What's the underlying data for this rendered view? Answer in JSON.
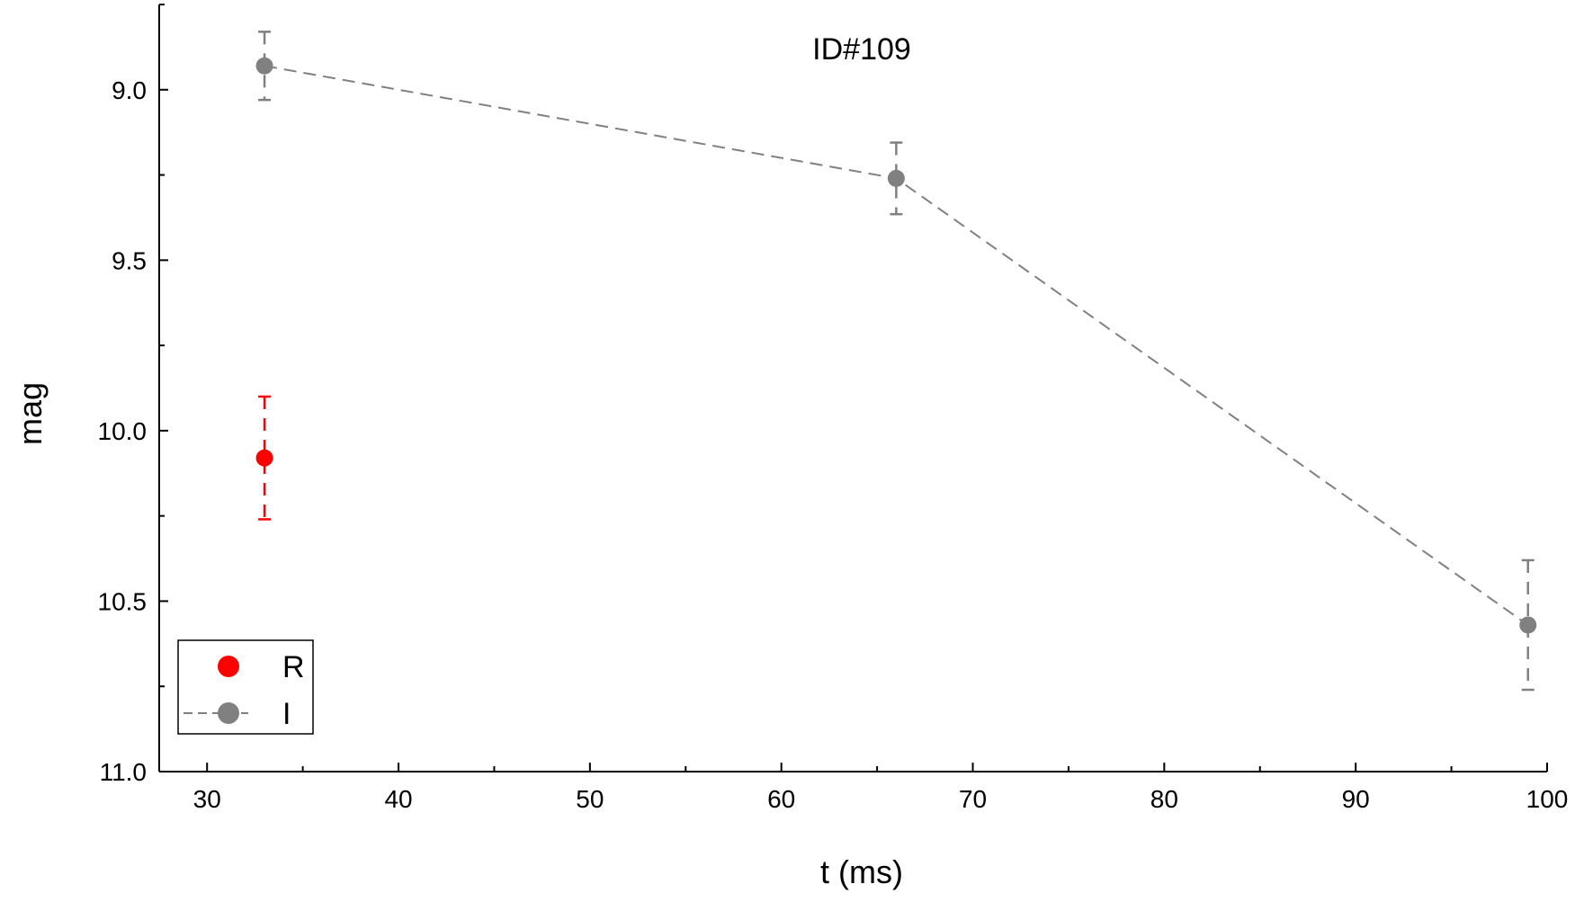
{
  "chart_data": {
    "type": "scatter",
    "title": "ID#109",
    "xlabel": "t (ms)",
    "ylabel": "mag",
    "xlim": [
      27.5,
      100
    ],
    "ylim": [
      11.0,
      8.75
    ],
    "y_inverted": true,
    "x_ticks": [
      30,
      40,
      50,
      60,
      70,
      80,
      90,
      100
    ],
    "x_tick_labels": [
      "30",
      "40",
      "50",
      "60",
      "70",
      "80",
      "90",
      "100"
    ],
    "y_ticks": [
      9.0,
      9.5,
      10.0,
      10.5,
      11.0
    ],
    "y_tick_labels": [
      "9.0",
      "9.5",
      "10.0",
      "10.5",
      "11.0"
    ],
    "grid": false,
    "legend_position": "bottom-left",
    "series": [
      {
        "name": "R",
        "color": "#ff0000",
        "line": "none",
        "points": [
          {
            "x": 33,
            "y": 10.08,
            "err": 0.18
          }
        ]
      },
      {
        "name": "I",
        "color": "#808080",
        "line": "dashed",
        "points": [
          {
            "x": 33,
            "y": 8.93,
            "err": 0.1
          },
          {
            "x": 66,
            "y": 9.26,
            "err": 0.105
          },
          {
            "x": 99,
            "y": 10.57,
            "err": 0.19
          }
        ]
      }
    ]
  }
}
